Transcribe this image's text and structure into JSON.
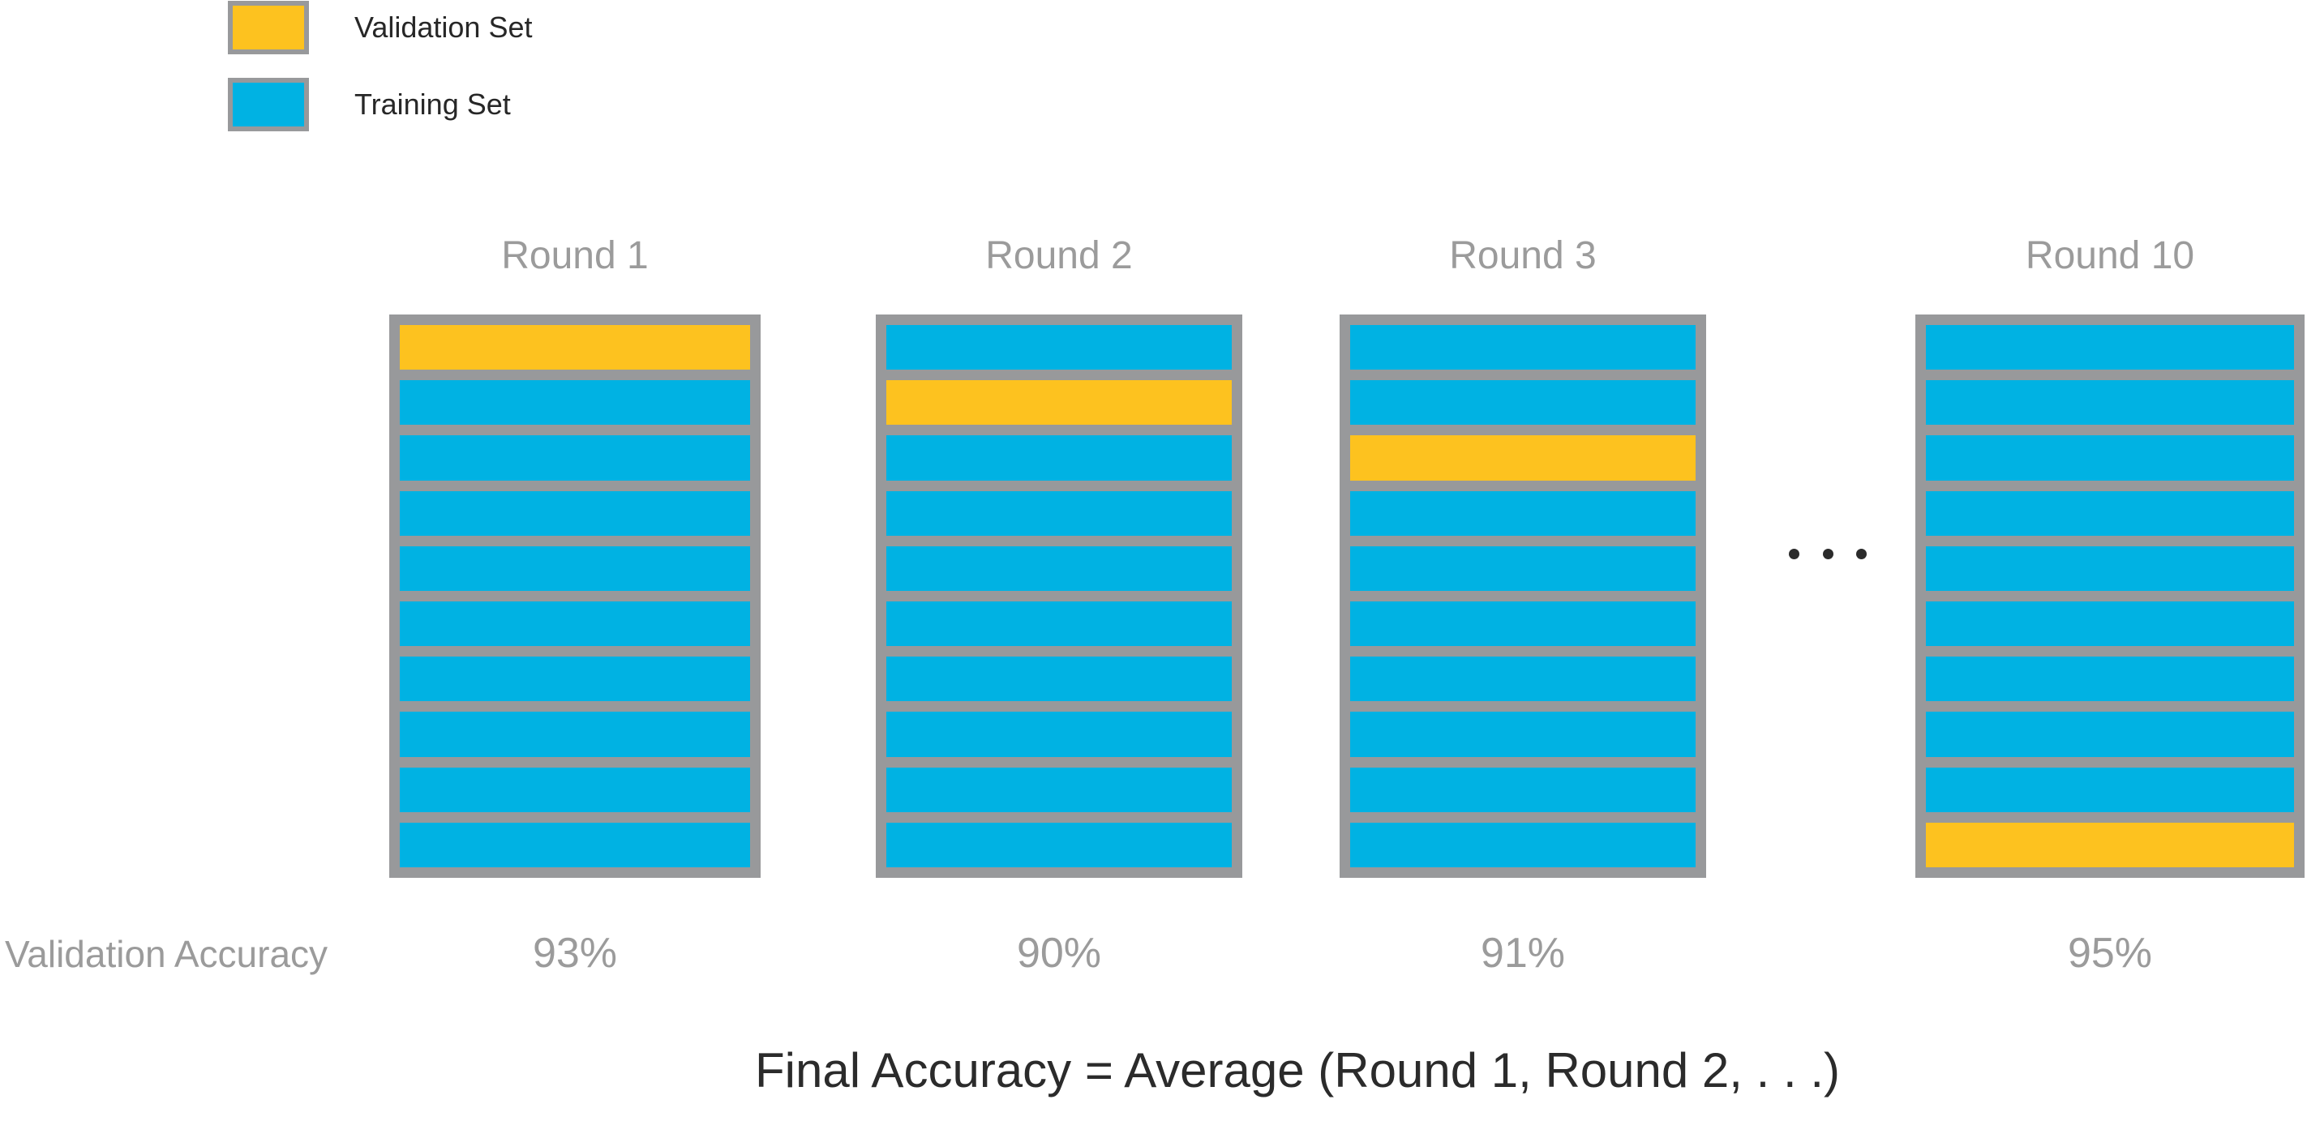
{
  "colors": {
    "validation": "#FDC21F",
    "training": "#00B2E3",
    "frame": "#98999B",
    "muted_text": "#9B9B9B",
    "dark_text": "#2B2B2B"
  },
  "legend": {
    "items": [
      {
        "label": "Validation Set",
        "color_key": "validation"
      },
      {
        "label": "Training Set",
        "color_key": "training"
      }
    ]
  },
  "rounds": [
    {
      "title": "Round 1",
      "folds": 10,
      "validation_fold_index": 0,
      "validation_accuracy": "93%"
    },
    {
      "title": "Round 2",
      "folds": 10,
      "validation_fold_index": 1,
      "validation_accuracy": "90%"
    },
    {
      "title": "Round 3",
      "folds": 10,
      "validation_fold_index": 2,
      "validation_accuracy": "91%"
    },
    {
      "title": "Round 10",
      "folds": 10,
      "validation_fold_index": 9,
      "validation_accuracy": "95%"
    }
  ],
  "ellipsis": ". . .",
  "accuracy_row": {
    "label": "Validation Accuracy"
  },
  "footer": {
    "formula": "Final Accuracy = Average (Round 1, Round 2, . . .)"
  }
}
